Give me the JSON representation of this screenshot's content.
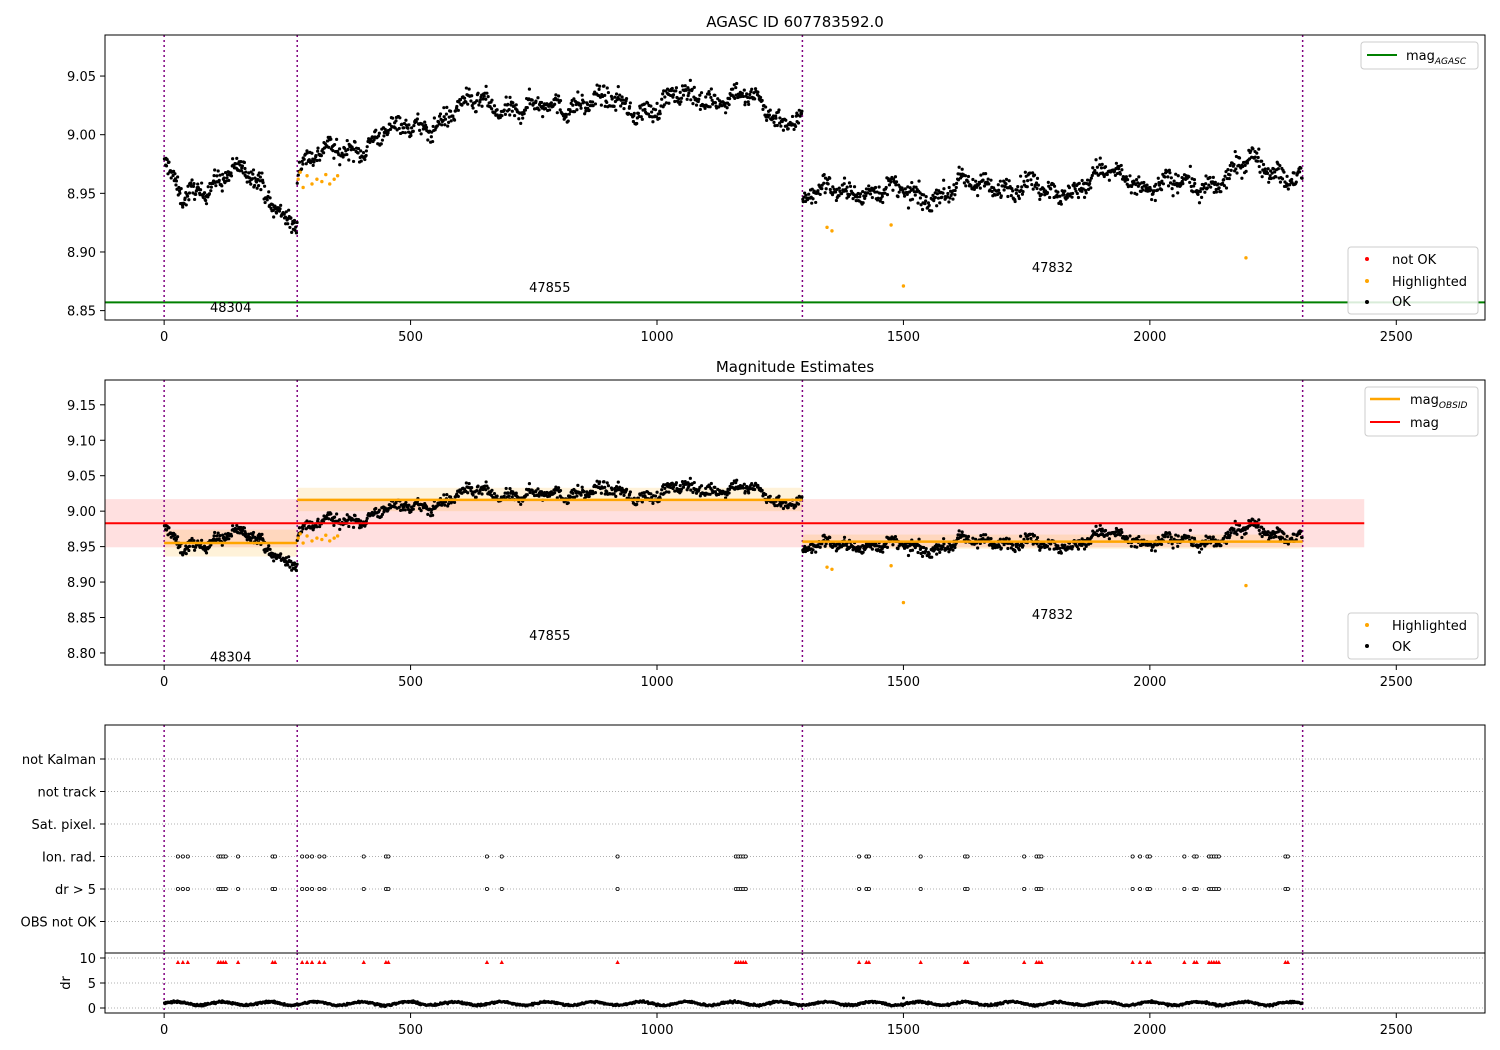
{
  "figure": {
    "top": {
      "title": "AGASC ID 607783592.0",
      "legend_mag": [
        "mag",
        "AGASC"
      ],
      "legend_points": [
        "not OK",
        "Highlighted",
        "OK"
      ],
      "xticks": [
        0,
        500,
        1000,
        1500,
        2000,
        2500
      ],
      "yticks": [
        "8.85",
        "8.90",
        "8.95",
        "9.00",
        "9.05"
      ]
    },
    "middle": {
      "title": "Magnitude Estimates",
      "legend_lines": [
        [
          "mag",
          "OBSID"
        ],
        [
          "mag",
          ""
        ]
      ],
      "legend_points": [
        "Highlighted",
        "OK"
      ],
      "xticks": [
        0,
        500,
        1000,
        1500,
        2000,
        2500
      ],
      "yticks": [
        "8.80",
        "8.85",
        "8.90",
        "8.95",
        "9.00",
        "9.05",
        "9.10",
        "9.15"
      ]
    },
    "flags": {
      "rows": [
        "not Kalman",
        "not track",
        "Sat. pixel.",
        "Ion. rad.",
        "dr > 5",
        "OBS not OK"
      ]
    },
    "dr": {
      "ylabel": "dr",
      "yticks": [
        "0",
        "5",
        "10"
      ],
      "xticks": [
        0,
        500,
        1000,
        1500,
        2000,
        2500
      ]
    },
    "obsids": [
      {
        "label": "48304",
        "start": 0,
        "end": 270
      },
      {
        "label": "47855",
        "start": 270,
        "end": 1295
      },
      {
        "label": "47832",
        "start": 1295,
        "end": 2310
      }
    ],
    "colors": {
      "ok": "#000000",
      "highlighted": "#ffa500",
      "not_ok": "#ff0000",
      "agasc": "#008000",
      "mag": "#ff0000",
      "obsid_mag": "#ffa500",
      "boundary": "#800080"
    }
  },
  "chart_data": [
    {
      "type": "scatter",
      "title": "AGASC ID 607783592.0",
      "xlim": [
        -120,
        2680
      ],
      "ylim": [
        8.842,
        9.085
      ],
      "agasc_mag": 8.857,
      "trend_segments": [
        {
          "obsid": "48304",
          "x": [
            0,
            40,
            80,
            130,
            170,
            210,
            240,
            270
          ],
          "y": [
            8.975,
            8.94,
            8.955,
            8.972,
            8.965,
            8.945,
            8.935,
            8.93
          ]
        },
        {
          "obsid": "47855",
          "x": [
            270,
            350,
            450,
            550,
            650,
            750,
            850,
            950,
            1050,
            1150,
            1250,
            1295
          ],
          "y": [
            8.975,
            8.985,
            9.0,
            9.012,
            9.028,
            9.02,
            9.03,
            9.022,
            9.03,
            9.035,
            9.015,
            9.018
          ]
        },
        {
          "obsid": "47832",
          "x": [
            1295,
            1400,
            1500,
            1600,
            1700,
            1800,
            1900,
            2000,
            2100,
            2200,
            2310
          ],
          "y": [
            8.945,
            8.955,
            8.948,
            8.952,
            8.96,
            8.95,
            8.965,
            8.958,
            8.955,
            8.975,
            8.965
          ]
        }
      ],
      "highlighted_points": {
        "x": [
          272,
          276,
          282,
          290,
          300,
          310,
          320,
          328,
          336,
          345,
          352,
          1345,
          1355,
          1475,
          1500,
          2195
        ],
        "y": [
          8.962,
          8.968,
          8.955,
          8.965,
          8.958,
          8.962,
          8.96,
          8.966,
          8.958,
          8.962,
          8.965,
          8.921,
          8.918,
          8.923,
          8.871,
          8.895
        ]
      },
      "not_ok_points": {
        "x": [],
        "y": []
      }
    },
    {
      "type": "scatter",
      "title": "Magnitude Estimates",
      "xlim": [
        -120,
        2680
      ],
      "ylim": [
        8.783,
        9.185
      ],
      "mag": 8.983,
      "mag_band": [
        8.949,
        9.017
      ],
      "mag_line_x": [
        -120,
        2435
      ],
      "obsid_mags": [
        {
          "obsid": "48304",
          "mag": 8.955,
          "band": [
            8.936,
            8.974
          ]
        },
        {
          "obsid": "47855",
          "mag": 9.016,
          "band": [
            9.0,
            9.033
          ]
        },
        {
          "obsid": "47832",
          "mag": 8.957,
          "band": [
            8.947,
            8.967
          ]
        }
      ]
    },
    {
      "type": "scatter",
      "flag_rows": [
        "not Kalman",
        "not track",
        "Sat. pixel.",
        "Ion. rad.",
        "dr > 5",
        "OBS not OK"
      ],
      "flag_events_x": [
        28,
        38,
        48,
        110,
        115,
        120,
        125,
        150,
        220,
        225,
        280,
        290,
        300,
        315,
        325,
        405,
        450,
        455,
        655,
        685,
        920,
        1160,
        1165,
        1170,
        1175,
        1180,
        1410,
        1425,
        1430,
        1535,
        1625,
        1630,
        1745,
        1770,
        1775,
        1780,
        1965,
        1980,
        1995,
        2000,
        2070,
        2090,
        2095,
        2120,
        2125,
        2130,
        2135,
        2140,
        2275,
        2280
      ],
      "flagged_rows": [
        "Ion. rad.",
        "dr > 5"
      ]
    },
    {
      "type": "scatter",
      "ylabel": "dr",
      "ylim": [
        -1,
        11
      ],
      "dr_mean": 0.9,
      "dr_outlier": {
        "x": 1500,
        "y": 2.0
      }
    }
  ]
}
